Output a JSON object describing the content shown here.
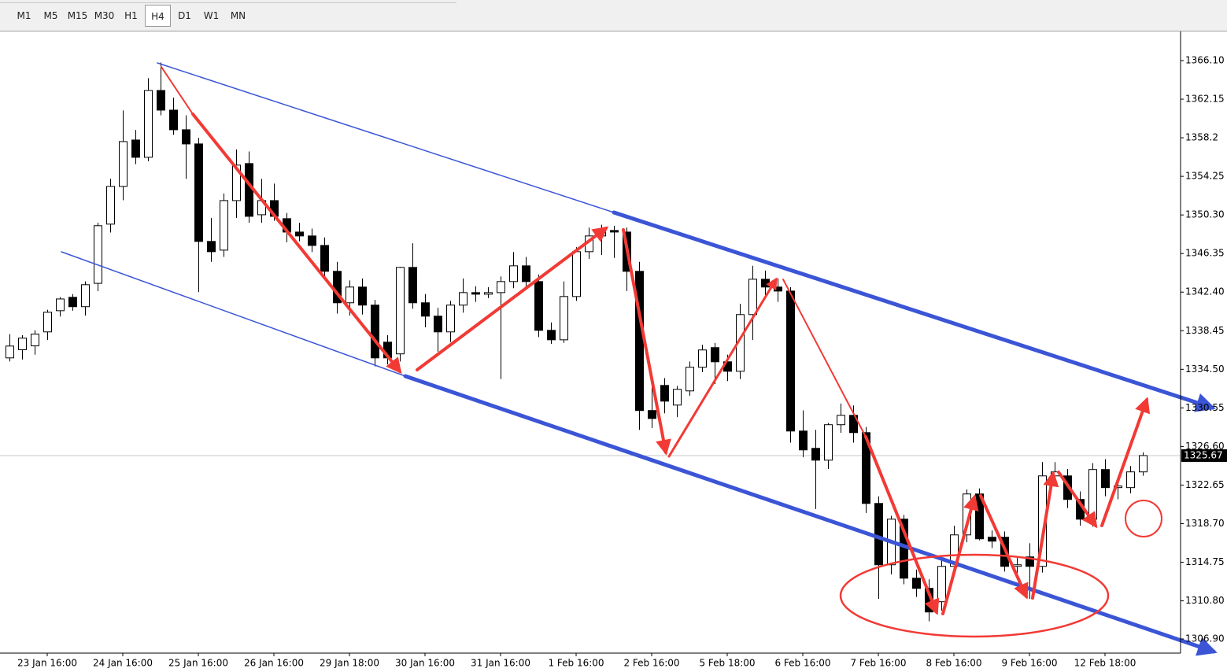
{
  "toolbar": {
    "timeframes": [
      "M1",
      "M5",
      "M15",
      "M30",
      "H1",
      "H4",
      "D1",
      "W1",
      "MN"
    ],
    "selected_index": 5
  },
  "chart_data": {
    "type": "candlestick",
    "categories": [
      null,
      null,
      null,
      "23 Jan 16:00",
      null,
      null,
      null,
      null,
      null,
      "24 Jan 16:00",
      null,
      null,
      null,
      null,
      null,
      "25 Jan 16:00",
      null,
      null,
      null,
      null,
      null,
      "26 Jan 16:00",
      null,
      null,
      null,
      null,
      null,
      "29 Jan 18:00",
      null,
      null,
      null,
      null,
      null,
      "30 Jan 16:00",
      null,
      null,
      null,
      null,
      null,
      "31 Jan 16:00",
      null,
      null,
      null,
      null,
      null,
      "1 Feb 16:00",
      null,
      null,
      null,
      null,
      null,
      "2 Feb 16:00",
      null,
      null,
      null,
      null,
      null,
      "5 Feb 18:00",
      null,
      null,
      null,
      null,
      null,
      "6 Feb 16:00",
      null,
      null,
      null,
      null,
      null,
      "7 Feb 16:00",
      null,
      null,
      null,
      null,
      null,
      "8 Feb 16:00",
      null,
      null,
      null,
      null,
      null,
      "9 Feb 16:00",
      null,
      null,
      null,
      null,
      null,
      "12 Feb 18:00",
      null,
      null,
      null
    ],
    "open": [
      1335.67,
      1336.5,
      1336.9,
      1338.33,
      1340.5,
      1341.87,
      1340.91,
      1343.3,
      1349.36,
      1353.22,
      1357.97,
      1356.2,
      1363.04,
      1361.03,
      1359.02,
      1357.57,
      1347.59,
      1346.7,
      1351.77,
      1355.56,
      1350.32,
      1351.77,
      1349.92,
      1348.55,
      1348.15,
      1347.18,
      1344.53,
      1341.31,
      1342.92,
      1341.07,
      1337.28,
      1336.08,
      1344.93,
      1341.31,
      1339.94,
      1338.33,
      1341.07,
      1342.35,
      1342.19,
      1342.35,
      1343.48,
      1345.09,
      1343.48,
      1338.49,
      1337.52,
      1341.95,
      1346.54,
      1348.15,
      1348.71,
      1348.55,
      1344.53,
      1330.28,
      1332.85,
      1330.84,
      1332.29,
      1334.71,
      1336.72,
      1335.27,
      1334.3,
      1340.1,
      1343.72,
      1342.92,
      1342.51,
      1328.18,
      1326.41,
      1325.2,
      1328.83,
      1329.79,
      1328.02,
      1320.77,
      1314.49,
      1319.16,
      1313.12,
      1312.08,
      1310.71,
      1314.33,
      1317.55,
      1321.74,
      1317.31,
      1317.31,
      1314.33,
      1315.3,
      1314.33,
      1323.59,
      1323.59,
      1321.18,
      1319.16,
      1324.24,
      1322.39,
      1322.39,
      1324.0
    ],
    "high": [
      1338.1,
      1338.0,
      1338.5,
      1340.6,
      1341.9,
      1342.2,
      1343.5,
      1349.5,
      1354.0,
      1361.0,
      1359.0,
      1364.3,
      1365.9,
      1362.3,
      1360.5,
      1358.2,
      1350.0,
      1352.5,
      1357.0,
      1356.8,
      1354.0,
      1353.5,
      1350.5,
      1349.5,
      1348.9,
      1348.0,
      1345.5,
      1343.6,
      1343.8,
      1341.6,
      1338.0,
      1345.0,
      1347.4,
      1342.2,
      1340.8,
      1341.5,
      1343.8,
      1343.0,
      1342.9,
      1344.0,
      1346.5,
      1346.0,
      1344.2,
      1339.3,
      1343.5,
      1347.0,
      1349.0,
      1349.3,
      1349.2,
      1349.0,
      1345.5,
      1333.5,
      1333.6,
      1332.8,
      1335.3,
      1337.0,
      1337.2,
      1336.0,
      1341.2,
      1345.1,
      1344.6,
      1343.8,
      1342.9,
      1330.3,
      1328.3,
      1329.0,
      1331.0,
      1330.8,
      1328.6,
      1321.5,
      1319.5,
      1319.6,
      1314.0,
      1313.0,
      1315.0,
      1318.5,
      1322.2,
      1322.3,
      1318.0,
      1317.9,
      1315.4,
      1316.7,
      1325.0,
      1325.0,
      1324.3,
      1322.0,
      1324.9,
      1325.3,
      1323.5,
      1324.6,
      1326.0
    ],
    "low": [
      1335.3,
      1335.5,
      1336.0,
      1337.5,
      1339.9,
      1340.5,
      1340.0,
      1342.5,
      1348.5,
      1351.8,
      1355.5,
      1355.8,
      1360.5,
      1358.5,
      1354.0,
      1342.4,
      1345.5,
      1346.0,
      1350.0,
      1349.5,
      1349.5,
      1349.7,
      1347.5,
      1347.6,
      1346.5,
      1343.8,
      1340.2,
      1340.0,
      1340.1,
      1334.8,
      1335.0,
      1335.3,
      1340.7,
      1338.8,
      1336.3,
      1337.3,
      1340.3,
      1341.4,
      1341.8,
      1333.5,
      1342.8,
      1342.9,
      1337.8,
      1337.1,
      1337.2,
      1341.5,
      1345.8,
      1346.2,
      1345.9,
      1342.5,
      1328.3,
      1328.5,
      1330.0,
      1329.6,
      1331.8,
      1334.2,
      1333.0,
      1333.3,
      1333.5,
      1337.5,
      1342.1,
      1341.4,
      1327.0,
      1325.5,
      1320.2,
      1324.3,
      1328.0,
      1327.0,
      1319.8,
      1311.0,
      1313.5,
      1312.5,
      1311.2,
      1308.7,
      1309.8,
      1313.6,
      1316.8,
      1317.0,
      1316.2,
      1313.8,
      1313.6,
      1311.0,
      1313.7,
      1322.8,
      1320.3,
      1318.5,
      1318.4,
      1321.5,
      1321.2,
      1321.8,
      1323.6
    ],
    "close": [
      1336.88,
      1337.69,
      1338.1,
      1340.34,
      1341.7,
      1340.91,
      1343.16,
      1349.2,
      1353.22,
      1357.81,
      1356.2,
      1363.04,
      1361.03,
      1359.02,
      1357.57,
      1347.59,
      1346.54,
      1351.77,
      1355.4,
      1350.16,
      1351.77,
      1350.16,
      1348.55,
      1348.15,
      1347.18,
      1344.53,
      1341.31,
      1342.92,
      1341.07,
      1335.67,
      1335.67,
      1344.93,
      1341.31,
      1339.94,
      1338.33,
      1341.07,
      1342.35,
      1342.19,
      1342.35,
      1343.48,
      1345.09,
      1343.48,
      1338.49,
      1337.52,
      1341.95,
      1346.54,
      1348.15,
      1348.7,
      1348.55,
      1344.53,
      1330.28,
      1329.47,
      1331.24,
      1332.45,
      1334.71,
      1336.48,
      1335.27,
      1334.3,
      1340.1,
      1343.72,
      1342.92,
      1342.51,
      1328.18,
      1326.25,
      1325.2,
      1328.83,
      1329.79,
      1328.02,
      1320.77,
      1314.49,
      1319.16,
      1313.12,
      1312.08,
      1309.66,
      1314.33,
      1317.55,
      1321.74,
      1317.15,
      1316.91,
      1314.33,
      1314.49,
      1314.33,
      1323.59,
      1324.0,
      1321.18,
      1319.16,
      1324.24,
      1322.39,
      1322.55,
      1324.0,
      1325.67
    ],
    "last_price": 1325.67,
    "ylim": [
      1305.45,
      1369.08
    ],
    "yticks": [
      {
        "value": 1366.1,
        "label": "1366.10"
      },
      1362.15,
      1358.2,
      1354.25,
      {
        "value": 1350.3,
        "label": "1350.30"
      },
      1346.35,
      {
        "value": 1342.4,
        "label": "1342.40"
      },
      1338.45,
      {
        "value": 1334.5,
        "label": "1334.50"
      },
      1330.55,
      {
        "value": 1326.6,
        "label": "1326.60"
      },
      1322.65,
      {
        "value": 1318.7,
        "label": "1318.70"
      },
      1314.75,
      {
        "value": 1310.8,
        "label": "1310.80"
      },
      {
        "value": 1306.9,
        "label": "1306.90"
      }
    ]
  }
}
